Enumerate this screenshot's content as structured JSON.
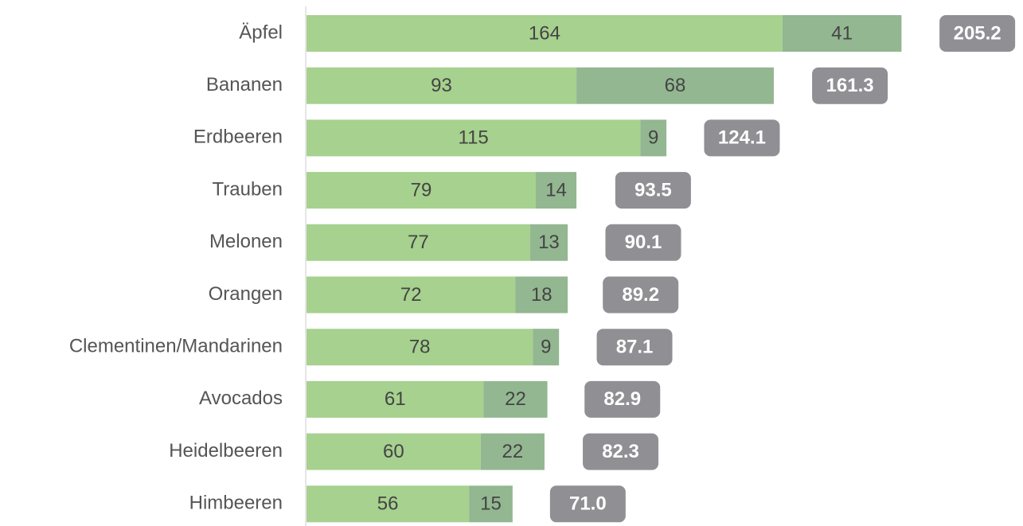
{
  "chart_data": {
    "type": "stacked-barh",
    "categories": [
      "Äpfel",
      "Bananen",
      "Erdbeeren",
      "Trauben",
      "Melonen",
      "Orangen",
      "Clementinen/Mandarinen",
      "Avocados",
      "Heidelbeeren",
      "Himbeeren"
    ],
    "series": [
      {
        "color": "#a6d18e",
        "values": [
          164,
          93,
          115,
          79,
          77,
          72,
          78,
          61,
          60,
          56
        ]
      },
      {
        "color": "#93b791",
        "values": [
          41,
          68,
          9,
          14,
          13,
          18,
          9,
          22,
          22,
          15
        ]
      }
    ],
    "totals": {
      "color": "#8f8f94",
      "values": [
        205.2,
        161.3,
        124.1,
        93.5,
        90.1,
        89.2,
        87.1,
        82.9,
        82.3,
        71.0
      ],
      "value_labels": [
        "205.2",
        "161.3",
        "124.1",
        "93.5",
        "90.1",
        "89.2",
        "87.1",
        "82.9",
        "82.3",
        "71.0"
      ]
    },
    "xlim": [
      0,
      240
    ]
  }
}
